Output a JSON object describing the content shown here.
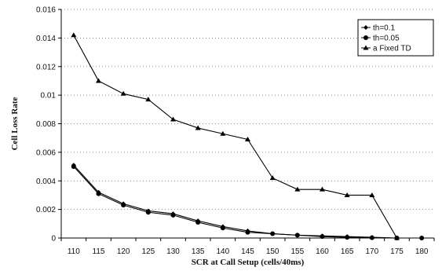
{
  "chart_data": {
    "type": "line",
    "xlabel": "SCR at Call Setup (cells/40ms)",
    "ylabel": "Cell Loss Rate",
    "x": [
      110,
      115,
      120,
      125,
      130,
      135,
      140,
      145,
      150,
      155,
      160,
      165,
      170,
      175,
      180
    ],
    "x_tick_labels": [
      "110",
      "115",
      "120",
      "125",
      "130",
      "135",
      "140",
      "145",
      "150",
      "155",
      "160",
      "165",
      "170",
      "175",
      "180"
    ],
    "y_ticks": [
      0,
      0.002,
      0.004,
      0.006,
      0.008,
      0.01,
      0.012,
      0.014,
      0.016
    ],
    "y_tick_labels": [
      "0",
      "0.002",
      "0.004",
      "0.006",
      "0.008",
      "0.01",
      "0.012",
      "0.014",
      "0.016"
    ],
    "ylim": [
      0,
      0.016
    ],
    "grid": "horizontal-dotted",
    "legend_position": "top-right",
    "series": [
      {
        "name": "th=0.1",
        "marker": "diamond",
        "values": [
          0.0051,
          0.0032,
          0.0024,
          0.0019,
          0.0017,
          0.0012,
          0.0008,
          0.0005,
          0.0003,
          0.0002,
          0.00015,
          0.0001,
          5e-05,
          0,
          0
        ]
      },
      {
        "name": "th=0.05",
        "marker": "circle",
        "values": [
          0.005,
          0.0031,
          0.0023,
          0.0018,
          0.0016,
          0.0011,
          0.0007,
          0.0004,
          0.0003,
          0.0002,
          0.0001,
          5e-05,
          2e-05,
          0,
          0
        ]
      },
      {
        "name": "a Fixed TD",
        "marker": "triangle",
        "values": [
          0.0142,
          0.011,
          0.0101,
          0.0097,
          0.0083,
          0.0077,
          0.0073,
          0.0069,
          0.0042,
          0.0034,
          0.0034,
          0.003,
          0.003,
          0,
          null
        ]
      }
    ]
  }
}
